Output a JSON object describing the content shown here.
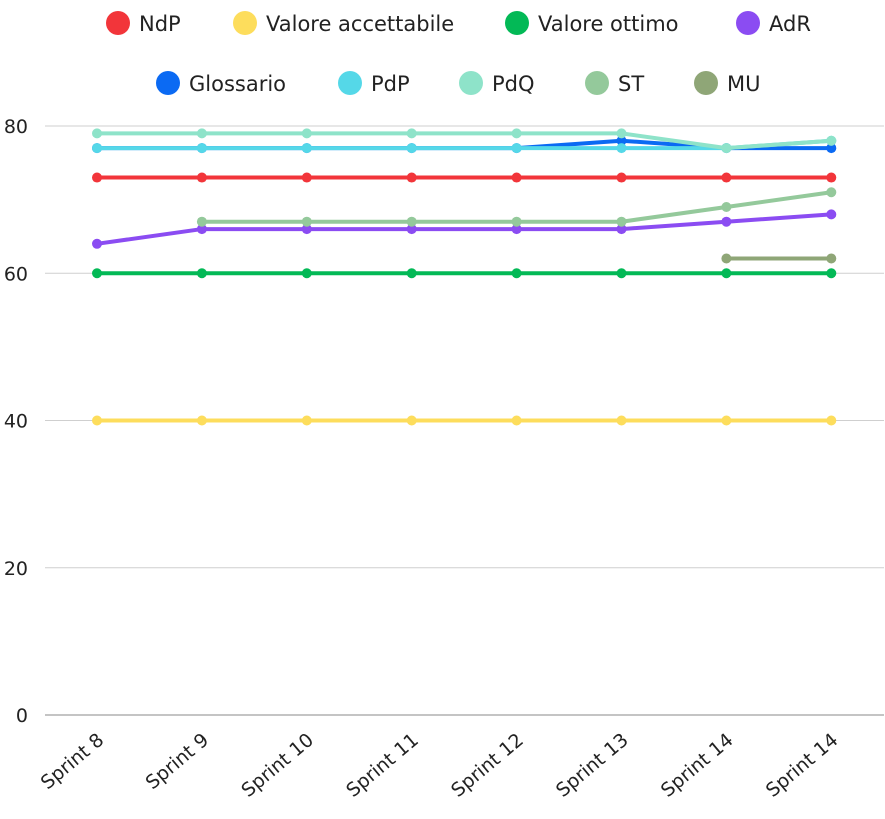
{
  "chart_data": {
    "type": "line",
    "categories": [
      "Sprint 8",
      "Sprint 9",
      "Sprint 10",
      "Sprint 11",
      "Sprint 12",
      "Sprint 13",
      "Sprint 14",
      "Sprint 14"
    ],
    "ylim": [
      0,
      80
    ],
    "yticks": [
      0,
      20,
      40,
      60,
      80
    ],
    "grid": true,
    "legend_position": "top",
    "series": [
      {
        "name": "NdP",
        "color": "#f2353a",
        "values": [
          73,
          73,
          73,
          73,
          73,
          73,
          73,
          73
        ]
      },
      {
        "name": "Valore accettabile",
        "color": "#fddd5c",
        "values": [
          40,
          40,
          40,
          40,
          40,
          40,
          40,
          40
        ]
      },
      {
        "name": "Valore ottimo",
        "color": "#03b956",
        "values": [
          60,
          60,
          60,
          60,
          60,
          60,
          60,
          60
        ]
      },
      {
        "name": "AdR",
        "color": "#8b4cf2",
        "values": [
          64,
          66,
          66,
          66,
          66,
          66,
          67,
          68
        ]
      },
      {
        "name": "Glossario",
        "color": "#0b6af3",
        "values": [
          77,
          77,
          77,
          77,
          77,
          78,
          77,
          77
        ]
      },
      {
        "name": "PdP",
        "color": "#55d8e8",
        "values": [
          77,
          77,
          77,
          77,
          77,
          77,
          77,
          78
        ]
      },
      {
        "name": "PdQ",
        "color": "#8ee3c9",
        "values": [
          79,
          79,
          79,
          79,
          79,
          79,
          77,
          78
        ]
      },
      {
        "name": "ST",
        "color": "#94c99b",
        "values": [
          null,
          67,
          67,
          67,
          67,
          67,
          69,
          71
        ]
      },
      {
        "name": "MU",
        "color": "#8fa677",
        "values": [
          null,
          null,
          null,
          null,
          null,
          null,
          62,
          62
        ]
      }
    ]
  }
}
